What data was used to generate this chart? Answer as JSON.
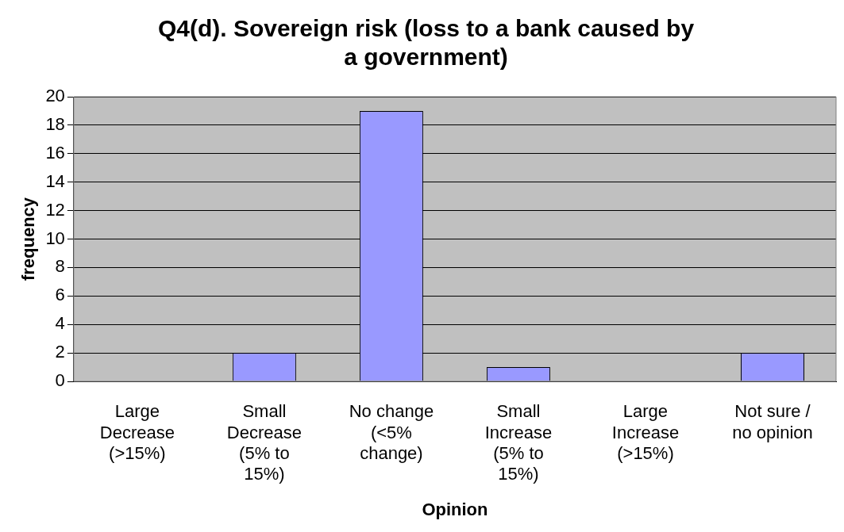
{
  "chart_data": {
    "type": "bar",
    "title": "Q4(d). Sovereign risk (loss to a bank caused by a government)",
    "xlabel": "Opinion",
    "ylabel": "frequency",
    "categories": [
      "Large Decrease (>15%)",
      "Small Decrease (5% to 15%)",
      "No change (<5% change)",
      "Small Increase (5% to 15%)",
      "Large Increase (>15%)",
      "Not sure / no opinion"
    ],
    "values": [
      0,
      2,
      19,
      1,
      0,
      2
    ],
    "color": "#9999ff",
    "ylim": [
      0,
      20
    ],
    "yticks": [
      0,
      2,
      4,
      6,
      8,
      10,
      12,
      14,
      16,
      18,
      20
    ],
    "grid": "y",
    "legend": false
  }
}
